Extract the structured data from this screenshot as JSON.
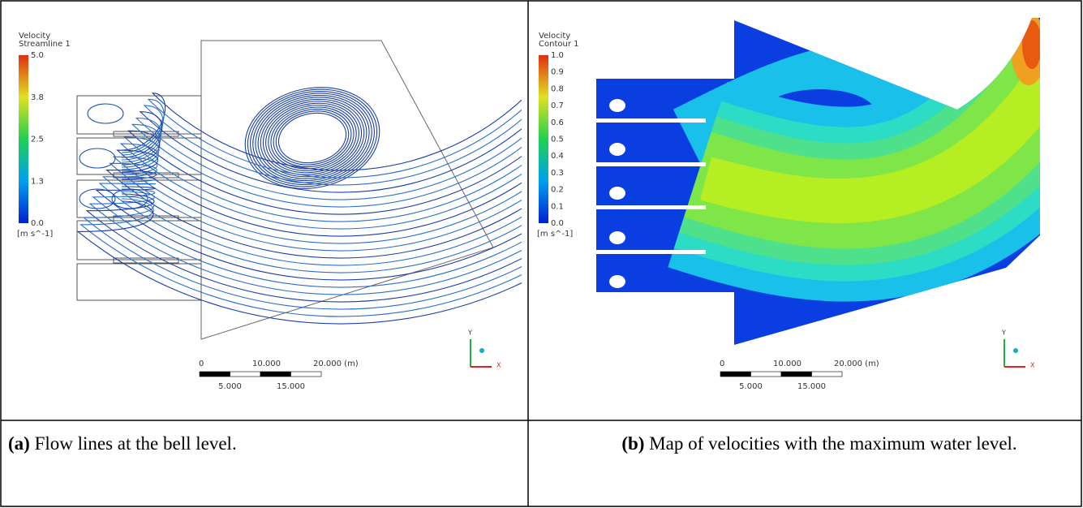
{
  "panels": [
    {
      "legend": {
        "title": [
          "Velocity",
          "Streamline 1"
        ],
        "ticks": [
          "5.0",
          "3.8",
          "2.5",
          "1.3",
          "0.0"
        ],
        "unit": "[m s^-1]"
      },
      "scale": {
        "top": [
          "0",
          "10.000",
          "20.000 (m)"
        ],
        "bottom": [
          "5.000",
          "15.000"
        ]
      },
      "axes": [
        "Y",
        "X"
      ],
      "caption": {
        "label": "(a)",
        "text": "Flow lines at the bell level."
      }
    },
    {
      "legend": {
        "title": [
          "Velocity",
          "Contour 1"
        ],
        "ticks": [
          "1.0",
          "0.9",
          "0.8",
          "0.7",
          "0.6",
          "0.5",
          "0.4",
          "0.3",
          "0.2",
          "0.1",
          "0.0"
        ],
        "unit": "[m s^-1]"
      },
      "scale": {
        "top": [
          "0",
          "10.000",
          "20.000 (m)"
        ],
        "bottom": [
          "5.000",
          "15.000"
        ]
      },
      "axes": [
        "Y",
        "X"
      ],
      "caption": {
        "label": "(b)",
        "text": "Map of velocities with the maximum water level."
      }
    }
  ]
}
